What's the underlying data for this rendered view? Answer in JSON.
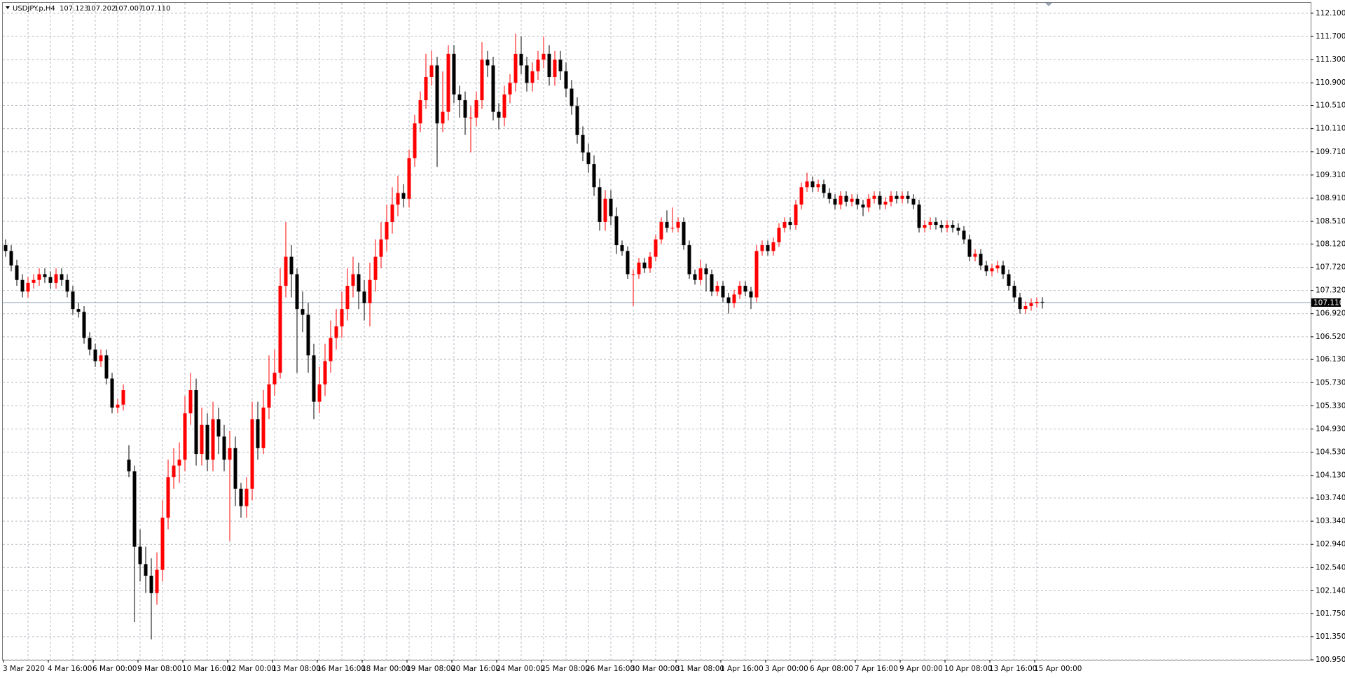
{
  "header": {
    "symbol": "USDJPY.p,H4",
    "values": [
      "107.123",
      "107.202",
      "107.007",
      "107.110"
    ]
  },
  "chart_data": {
    "type": "candlestick",
    "grid": true,
    "up_color": "#ff0000",
    "down_color": "#000000",
    "current_price": {
      "value": 107.11,
      "label": "107.110"
    },
    "ylim": [
      100.95,
      112.28
    ],
    "yticks": [
      {
        "value": 112.1,
        "label": "112.100"
      },
      {
        "value": 111.7,
        "label": "111.700"
      },
      {
        "value": 111.3,
        "label": "111.300"
      },
      {
        "value": 110.9,
        "label": "110.900"
      },
      {
        "value": 110.51,
        "label": "110.510"
      },
      {
        "value": 110.11,
        "label": "110.110"
      },
      {
        "value": 109.71,
        "label": "109.710"
      },
      {
        "value": 109.31,
        "label": "109.310"
      },
      {
        "value": 108.91,
        "label": "108.910"
      },
      {
        "value": 108.51,
        "label": "108.510"
      },
      {
        "value": 108.12,
        "label": "108.120"
      },
      {
        "value": 107.72,
        "label": "107.720"
      },
      {
        "value": 107.32,
        "label": "107.320"
      },
      {
        "value": 106.92,
        "label": "106.920"
      },
      {
        "value": 106.52,
        "label": "106.520"
      },
      {
        "value": 106.13,
        "label": "106.130"
      },
      {
        "value": 105.73,
        "label": "105.730"
      },
      {
        "value": 105.33,
        "label": "105.330"
      },
      {
        "value": 104.93,
        "label": "104.930"
      },
      {
        "value": 104.53,
        "label": "104.530"
      },
      {
        "value": 104.13,
        "label": "104.130"
      },
      {
        "value": 103.74,
        "label": "103.740"
      },
      {
        "value": 103.34,
        "label": "103.340"
      },
      {
        "value": 102.94,
        "label": "102.940"
      },
      {
        "value": 102.54,
        "label": "102.540"
      },
      {
        "value": 102.14,
        "label": "102.140"
      },
      {
        "value": 101.75,
        "label": "101.750"
      },
      {
        "value": 101.35,
        "label": "101.350"
      },
      {
        "value": 100.95,
        "label": "100.950"
      }
    ],
    "categories": [
      "3 Mar 2020",
      null,
      null,
      null,
      null,
      null,
      null,
      null,
      "4 Mar 16:00",
      null,
      null,
      null,
      null,
      null,
      null,
      null,
      "6 Mar 00:00",
      null,
      null,
      null,
      null,
      null,
      null,
      null,
      "9 Mar 08:00",
      null,
      null,
      null,
      null,
      null,
      null,
      null,
      "10 Mar 16:00",
      null,
      null,
      null,
      null,
      null,
      null,
      null,
      "12 Mar 00:00",
      null,
      null,
      null,
      null,
      null,
      null,
      null,
      "13 Mar 08:00",
      null,
      null,
      null,
      null,
      null,
      null,
      null,
      "16 Mar 16:00",
      null,
      null,
      null,
      null,
      null,
      null,
      null,
      "18 Mar 00:00",
      null,
      null,
      null,
      null,
      null,
      null,
      null,
      "19 Mar 08:00",
      null,
      null,
      null,
      null,
      null,
      null,
      null,
      "20 Mar 16:00",
      null,
      null,
      null,
      null,
      null,
      null,
      null,
      "24 Mar 00:00",
      null,
      null,
      null,
      null,
      null,
      null,
      null,
      "25 Mar 08:00",
      null,
      null,
      null,
      null,
      null,
      null,
      null,
      "26 Mar 16:00",
      null,
      null,
      null,
      null,
      null,
      null,
      null,
      "30 Mar 00:00",
      null,
      null,
      null,
      null,
      null,
      null,
      null,
      "31 Mar 08:00",
      null,
      null,
      null,
      null,
      null,
      null,
      null,
      "1 Apr 16:00",
      null,
      null,
      null,
      null,
      null,
      null,
      null,
      "3 Apr 00:00",
      null,
      null,
      null,
      null,
      null,
      null,
      null,
      "6 Apr 08:00",
      null,
      null,
      null,
      null,
      null,
      null,
      null,
      "7 Apr 16:00",
      null,
      null,
      null,
      null,
      null,
      null,
      null,
      "9 Apr 00:00",
      null,
      null,
      null,
      null,
      null,
      null,
      null,
      "10 Apr 08:00",
      null,
      null,
      null,
      null,
      null,
      null,
      null,
      "13 Apr 16:00",
      null,
      null,
      null,
      null,
      null,
      null,
      null,
      "15 Apr 00:00",
      null
    ],
    "open": [
      108.1,
      108.0,
      107.75,
      107.5,
      107.3,
      107.45,
      107.5,
      107.6,
      107.55,
      107.45,
      107.6,
      107.5,
      107.3,
      107.0,
      106.95,
      106.5,
      106.3,
      106.1,
      106.2,
      105.8,
      105.3,
      105.35,
      104.4,
      104.2,
      102.9,
      102.6,
      102.4,
      102.1,
      102.5,
      103.4,
      104.1,
      104.3,
      104.4,
      105.2,
      105.6,
      104.5,
      105.0,
      104.4,
      105.1,
      104.8,
      104.4,
      104.6,
      103.9,
      103.6,
      103.9,
      105.1,
      104.6,
      105.3,
      105.7,
      105.9,
      107.4,
      107.9,
      107.6,
      107.0,
      106.9,
      106.2,
      105.4,
      105.7,
      106.1,
      106.5,
      106.7,
      107.0,
      107.4,
      107.6,
      107.3,
      107.1,
      107.5,
      107.9,
      108.2,
      108.5,
      108.8,
      109.0,
      108.9,
      109.6,
      110.2,
      110.6,
      111.0,
      111.2,
      110.2,
      110.4,
      111.4,
      110.7,
      110.6,
      110.3,
      110.3,
      110.6,
      111.3,
      111.2,
      110.4,
      110.3,
      110.7,
      110.9,
      111.4,
      111.2,
      110.9,
      111.1,
      111.3,
      111.4,
      111.0,
      111.3,
      111.1,
      110.8,
      110.5,
      110.0,
      109.7,
      109.5,
      109.1,
      108.5,
      108.9,
      108.6,
      108.1,
      108.0,
      107.6,
      107.6,
      107.8,
      107.7,
      107.9,
      108.2,
      108.5,
      108.4,
      108.4,
      108.5,
      108.1,
      107.6,
      107.5,
      107.7,
      107.6,
      107.3,
      107.4,
      107.2,
      107.1,
      107.25,
      107.4,
      107.3,
      107.2,
      108.0,
      108.1,
      108.0,
      108.15,
      108.4,
      108.5,
      108.45,
      108.8,
      109.1,
      109.2,
      109.1,
      109.15,
      109.0,
      108.9,
      108.8,
      108.95,
      108.85,
      108.9,
      108.8,
      108.75,
      108.9,
      108.95,
      108.8,
      108.85,
      108.95,
      108.9,
      108.95,
      108.9,
      108.8,
      108.4,
      108.45,
      108.5,
      108.45,
      108.4,
      108.45,
      108.4,
      108.35,
      108.2,
      107.9,
      107.95,
      107.75,
      107.65,
      107.7,
      107.75,
      107.6,
      107.4,
      107.2,
      107.0,
      107.05,
      107.1,
      107.123
    ],
    "high": [
      108.2,
      108.1,
      107.85,
      107.6,
      107.55,
      107.6,
      107.7,
      107.7,
      107.65,
      107.7,
      107.7,
      107.6,
      107.4,
      107.1,
      107.05,
      106.6,
      106.4,
      106.3,
      106.3,
      105.9,
      105.45,
      105.7,
      104.65,
      104.3,
      103.2,
      102.9,
      102.7,
      102.8,
      103.7,
      104.4,
      104.6,
      104.7,
      105.5,
      105.9,
      105.8,
      105.3,
      105.2,
      105.4,
      105.3,
      105.0,
      104.9,
      104.8,
      104.0,
      104.1,
      105.4,
      105.4,
      105.6,
      106.2,
      106.3,
      107.7,
      108.5,
      108.1,
      107.7,
      107.3,
      107.1,
      106.4,
      106.0,
      106.4,
      106.8,
      107.0,
      107.3,
      107.7,
      107.9,
      107.8,
      107.5,
      107.8,
      108.2,
      108.5,
      108.8,
      109.1,
      109.3,
      109.15,
      109.75,
      110.35,
      110.75,
      111.4,
      111.45,
      111.35,
      111.1,
      111.55,
      111.55,
      110.85,
      110.75,
      110.5,
      110.75,
      111.6,
      111.45,
      111.35,
      110.55,
      110.85,
      111.05,
      111.75,
      111.7,
      111.35,
      111.25,
      111.45,
      111.7,
      111.55,
      111.45,
      111.45,
      111.25,
      110.95,
      110.65,
      110.15,
      109.85,
      109.65,
      109.25,
      109.05,
      109.05,
      108.75,
      108.18,
      108.08,
      107.68,
      107.88,
      107.88,
      107.98,
      108.28,
      108.58,
      108.7,
      108.75,
      108.58,
      108.58,
      108.18,
      107.68,
      107.85,
      107.78,
      107.68,
      107.48,
      107.48,
      107.28,
      107.33,
      107.48,
      107.48,
      107.38,
      108.1,
      108.18,
      108.18,
      108.23,
      108.48,
      108.58,
      108.58,
      108.88,
      109.18,
      109.35,
      109.28,
      109.23,
      109.23,
      109.08,
      108.98,
      109.03,
      109.03,
      108.98,
      108.98,
      108.88,
      108.98,
      109.03,
      109.03,
      108.93,
      109.03,
      109.03,
      109.03,
      109.03,
      108.98,
      108.88,
      108.53,
      108.58,
      108.58,
      108.53,
      108.53,
      108.53,
      108.48,
      108.43,
      108.28,
      108.03,
      108.03,
      107.83,
      107.78,
      107.83,
      107.83,
      107.68,
      107.48,
      107.28,
      107.13,
      107.18,
      107.2,
      107.202
    ],
    "low": [
      107.9,
      107.65,
      107.4,
      107.2,
      107.2,
      107.35,
      107.4,
      107.45,
      107.35,
      107.35,
      107.4,
      107.2,
      106.9,
      106.85,
      106.4,
      106.2,
      106.0,
      106.0,
      105.7,
      105.2,
      105.2,
      105.25,
      104.1,
      101.6,
      102.3,
      102.1,
      101.3,
      101.9,
      102.3,
      103.2,
      103.9,
      104.0,
      104.2,
      105.0,
      104.3,
      104.3,
      104.2,
      104.2,
      104.5,
      104.2,
      103.0,
      103.6,
      103.4,
      103.4,
      103.7,
      104.4,
      104.5,
      105.1,
      105.5,
      105.8,
      107.2,
      107.2,
      105.9,
      106.6,
      105.9,
      105.1,
      105.2,
      105.5,
      105.9,
      106.3,
      106.5,
      106.8,
      107.2,
      107.0,
      106.8,
      106.7,
      107.3,
      107.7,
      108.0,
      108.3,
      108.6,
      108.75,
      108.75,
      109.45,
      110.05,
      110.45,
      110.85,
      109.45,
      110.05,
      110.25,
      110.55,
      110.3,
      110.0,
      109.7,
      110.15,
      110.45,
      111.0,
      110.25,
      110.1,
      110.15,
      110.55,
      110.75,
      111.05,
      110.75,
      110.75,
      110.95,
      111.15,
      110.85,
      110.85,
      110.95,
      110.65,
      110.35,
      109.85,
      109.55,
      109.35,
      108.95,
      108.35,
      108.35,
      108.45,
      107.95,
      107.92,
      107.52,
      107.05,
      107.52,
      107.62,
      107.62,
      107.82,
      108.12,
      108.32,
      108.32,
      108.32,
      108.02,
      107.52,
      107.42,
      107.42,
      107.3,
      107.22,
      107.22,
      107.12,
      106.92,
      107.02,
      107.17,
      107.22,
      107.0,
      107.12,
      107.92,
      107.92,
      107.92,
      108.07,
      108.32,
      108.37,
      108.37,
      108.72,
      109.02,
      109.02,
      109.02,
      108.92,
      108.82,
      108.72,
      108.72,
      108.77,
      108.77,
      108.72,
      108.6,
      108.67,
      108.82,
      108.72,
      108.72,
      108.77,
      108.82,
      108.82,
      108.82,
      108.72,
      108.32,
      108.32,
      108.37,
      108.37,
      108.32,
      108.32,
      108.32,
      108.27,
      108.12,
      107.82,
      107.82,
      107.67,
      107.57,
      107.57,
      107.62,
      107.52,
      107.32,
      107.12,
      106.92,
      106.92,
      106.97,
      107.02,
      107.007
    ],
    "close": [
      108.0,
      107.75,
      107.5,
      107.3,
      107.45,
      107.5,
      107.6,
      107.55,
      107.45,
      107.6,
      107.5,
      107.3,
      107.0,
      106.95,
      106.5,
      106.3,
      106.1,
      106.2,
      105.8,
      105.3,
      105.35,
      105.6,
      104.2,
      102.9,
      102.6,
      102.4,
      102.1,
      102.5,
      103.4,
      104.1,
      104.3,
      104.4,
      105.2,
      105.6,
      104.5,
      105.0,
      104.4,
      105.1,
      104.8,
      104.4,
      104.6,
      103.9,
      103.6,
      103.9,
      105.1,
      104.6,
      105.3,
      105.7,
      105.9,
      107.4,
      107.9,
      107.6,
      107.0,
      106.9,
      106.2,
      105.4,
      105.7,
      106.1,
      106.5,
      106.7,
      107.0,
      107.4,
      107.6,
      107.3,
      107.1,
      107.5,
      107.9,
      108.2,
      108.5,
      108.8,
      109.0,
      108.9,
      109.6,
      110.2,
      110.6,
      111.0,
      111.2,
      110.2,
      110.4,
      111.4,
      110.7,
      110.6,
      110.3,
      110.3,
      110.6,
      111.3,
      111.2,
      110.4,
      110.3,
      110.7,
      110.9,
      111.4,
      111.2,
      110.9,
      111.1,
      111.3,
      111.4,
      111.0,
      111.3,
      111.1,
      110.8,
      110.5,
      110.0,
      109.7,
      109.5,
      109.1,
      108.5,
      108.9,
      108.6,
      108.1,
      108.0,
      107.6,
      107.6,
      107.8,
      107.7,
      107.9,
      108.2,
      108.5,
      108.4,
      108.4,
      108.5,
      108.1,
      107.6,
      107.5,
      107.7,
      107.6,
      107.3,
      107.4,
      107.2,
      107.1,
      107.25,
      107.4,
      107.3,
      107.2,
      108.0,
      108.1,
      108.0,
      108.15,
      108.4,
      108.5,
      108.45,
      108.8,
      109.1,
      109.2,
      109.1,
      109.15,
      109.0,
      108.9,
      108.8,
      108.95,
      108.85,
      108.9,
      108.8,
      108.75,
      108.9,
      108.95,
      108.8,
      108.85,
      108.95,
      108.9,
      108.95,
      108.9,
      108.8,
      108.4,
      108.45,
      108.5,
      108.45,
      108.4,
      108.45,
      108.4,
      108.35,
      108.2,
      107.9,
      107.95,
      107.75,
      107.65,
      107.7,
      107.75,
      107.6,
      107.4,
      107.2,
      107.0,
      107.05,
      107.1,
      107.123,
      107.11
    ]
  }
}
